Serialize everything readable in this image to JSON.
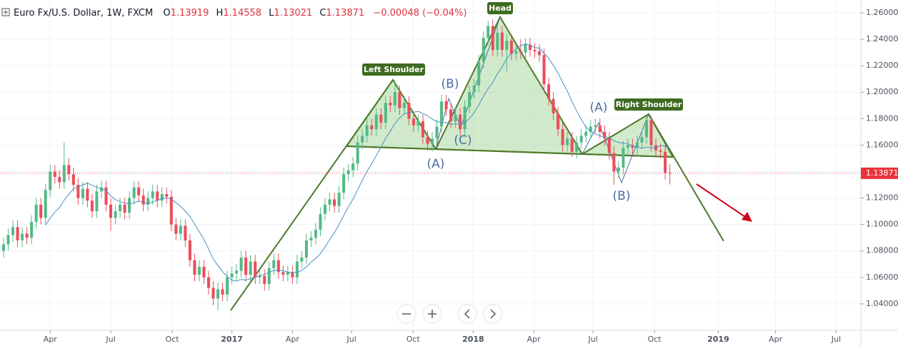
{
  "chart_data": {
    "type": "candlestick",
    "symbol": "Euro Fx/U.S. Dollar, 1W, FXCM",
    "ohlc_letters": [
      "O",
      "H",
      "L",
      "C"
    ],
    "change": "−0.00048 (−0.04%)",
    "colors": {
      "up": "#53b987",
      "down": "#eb4d5c",
      "ma": "#4a90c2",
      "pattern": "#4f7a28"
    },
    "ma_period": 10,
    "ylim": [
      1.02,
      1.2697
    ],
    "yticks": [
      {
        "value": 1.04,
        "label": "1.04000"
      },
      {
        "value": 1.06,
        "label": "1.06000"
      },
      {
        "value": 1.08,
        "label": "1.08000"
      },
      {
        "value": 1.1,
        "label": "1.10000"
      },
      {
        "value": 1.12,
        "label": "1.12000"
      },
      {
        "value": 1.14,
        "label": "1.14000"
      },
      {
        "value": 1.16,
        "label": "1.16000"
      },
      {
        "value": 1.18,
        "label": "1.18000"
      },
      {
        "value": 1.2,
        "label": "1.20000"
      },
      {
        "value": 1.22,
        "label": "1.22000"
      },
      {
        "value": 1.24,
        "label": "1.24000"
      },
      {
        "value": 1.26,
        "label": "1.26000"
      }
    ],
    "xlim": [
      -0.77,
      184
    ],
    "xticks": [
      {
        "value": 10,
        "label": "Apr"
      },
      {
        "value": 23,
        "label": "Jul"
      },
      {
        "value": 36.2,
        "label": "Oct"
      },
      {
        "value": 49,
        "label": "2017"
      },
      {
        "value": 62,
        "label": "Apr"
      },
      {
        "value": 74.7,
        "label": "Jul"
      },
      {
        "value": 87.9,
        "label": "Oct"
      },
      {
        "value": 100.8,
        "label": "2018"
      },
      {
        "value": 113.8,
        "label": "Apr"
      },
      {
        "value": 126.5,
        "label": "Jul"
      },
      {
        "value": 139.7,
        "label": "Oct"
      },
      {
        "value": 153.4,
        "label": "2019"
      },
      {
        "value": 165.7,
        "label": "Apr"
      },
      {
        "value": 178.7,
        "label": "Jul"
      }
    ],
    "year_ticks": [
      3,
      7,
      11
    ],
    "annotations": {
      "left_shoulder": "Left Shoulder",
      "head": "Head",
      "right_shoulder": "Right Shoulder",
      "waves": [
        "(A)",
        "(B)",
        "(C)",
        "(A)",
        "(B)"
      ]
    },
    "candles": [
      [
        1.08,
        1.09,
        1.075,
        1.085
      ],
      [
        1.085,
        1.097,
        1.08,
        1.092
      ],
      [
        1.092,
        1.103,
        1.087,
        1.098
      ],
      [
        1.098,
        1.103,
        1.083,
        1.088
      ],
      [
        1.088,
        1.098,
        1.083,
        1.093
      ],
      [
        1.093,
        1.098,
        1.085,
        1.09
      ],
      [
        1.09,
        1.107,
        1.085,
        1.102
      ],
      [
        1.102,
        1.12,
        1.097,
        1.115
      ],
      [
        1.115,
        1.12,
        1.1,
        1.105
      ],
      [
        1.105,
        1.131,
        1.1,
        1.126
      ],
      [
        1.126,
        1.145,
        1.121,
        1.14
      ],
      [
        1.14,
        1.145,
        1.131,
        1.136
      ],
      [
        1.136,
        1.141,
        1.127,
        1.132
      ],
      [
        1.132,
        1.162,
        1.127,
        1.145
      ],
      [
        1.145,
        1.15,
        1.133,
        1.138
      ],
      [
        1.138,
        1.143,
        1.125,
        1.13
      ],
      [
        1.13,
        1.135,
        1.115,
        1.12
      ],
      [
        1.12,
        1.132,
        1.115,
        1.127
      ],
      [
        1.127,
        1.132,
        1.113,
        1.118
      ],
      [
        1.118,
        1.123,
        1.105,
        1.11
      ],
      [
        1.11,
        1.13,
        1.105,
        1.125
      ],
      [
        1.125,
        1.133,
        1.12,
        1.128
      ],
      [
        1.128,
        1.133,
        1.11,
        1.115
      ],
      [
        1.115,
        1.12,
        1.095,
        1.105
      ],
      [
        1.105,
        1.115,
        1.1,
        1.11
      ],
      [
        1.11,
        1.12,
        1.105,
        1.115
      ],
      [
        1.115,
        1.12,
        1.104,
        1.109
      ],
      [
        1.109,
        1.125,
        1.104,
        1.12
      ],
      [
        1.12,
        1.133,
        1.115,
        1.128
      ],
      [
        1.128,
        1.133,
        1.117,
        1.122
      ],
      [
        1.122,
        1.127,
        1.11,
        1.115
      ],
      [
        1.115,
        1.125,
        1.11,
        1.12
      ],
      [
        1.12,
        1.13,
        1.115,
        1.125
      ],
      [
        1.125,
        1.13,
        1.113,
        1.118
      ],
      [
        1.118,
        1.128,
        1.113,
        1.123
      ],
      [
        1.123,
        1.128,
        1.116,
        1.121
      ],
      [
        1.121,
        1.126,
        1.095,
        1.1
      ],
      [
        1.1,
        1.105,
        1.088,
        1.093
      ],
      [
        1.093,
        1.104,
        1.088,
        1.099
      ],
      [
        1.099,
        1.104,
        1.083,
        1.088
      ],
      [
        1.088,
        1.093,
        1.068,
        1.073
      ],
      [
        1.073,
        1.078,
        1.057,
        1.062
      ],
      [
        1.062,
        1.073,
        1.057,
        1.068
      ],
      [
        1.068,
        1.073,
        1.055,
        1.06
      ],
      [
        1.06,
        1.065,
        1.047,
        1.052
      ],
      [
        1.052,
        1.057,
        1.039,
        1.044
      ],
      [
        1.044,
        1.056,
        1.035,
        1.051
      ],
      [
        1.051,
        1.056,
        1.042,
        1.047
      ],
      [
        1.047,
        1.065,
        1.042,
        1.06
      ],
      [
        1.06,
        1.068,
        1.055,
        1.063
      ],
      [
        1.063,
        1.07,
        1.058,
        1.065
      ],
      [
        1.065,
        1.08,
        1.06,
        1.075
      ],
      [
        1.075,
        1.08,
        1.057,
        1.062
      ],
      [
        1.062,
        1.077,
        1.057,
        1.072
      ],
      [
        1.072,
        1.077,
        1.055,
        1.06
      ],
      [
        1.06,
        1.066,
        1.055,
        1.061
      ],
      [
        1.061,
        1.066,
        1.05,
        1.055
      ],
      [
        1.055,
        1.072,
        1.05,
        1.067
      ],
      [
        1.067,
        1.078,
        1.062,
        1.073
      ],
      [
        1.073,
        1.078,
        1.059,
        1.064
      ],
      [
        1.064,
        1.069,
        1.057,
        1.062
      ],
      [
        1.062,
        1.069,
        1.057,
        1.064
      ],
      [
        1.064,
        1.069,
        1.055,
        1.06
      ],
      [
        1.06,
        1.077,
        1.055,
        1.072
      ],
      [
        1.072,
        1.08,
        1.067,
        1.075
      ],
      [
        1.075,
        1.093,
        1.07,
        1.088
      ],
      [
        1.088,
        1.095,
        1.083,
        1.09
      ],
      [
        1.09,
        1.101,
        1.085,
        1.096
      ],
      [
        1.096,
        1.113,
        1.091,
        1.108
      ],
      [
        1.108,
        1.12,
        1.103,
        1.115
      ],
      [
        1.115,
        1.124,
        1.11,
        1.119
      ],
      [
        1.119,
        1.124,
        1.109,
        1.114
      ],
      [
        1.114,
        1.129,
        1.109,
        1.124
      ],
      [
        1.124,
        1.143,
        1.119,
        1.138
      ],
      [
        1.138,
        1.146,
        1.133,
        1.141
      ],
      [
        1.141,
        1.151,
        1.136,
        1.146
      ],
      [
        1.146,
        1.167,
        1.141,
        1.162
      ],
      [
        1.162,
        1.172,
        1.157,
        1.167
      ],
      [
        1.167,
        1.18,
        1.162,
        1.175
      ],
      [
        1.175,
        1.18,
        1.167,
        1.172
      ],
      [
        1.172,
        1.188,
        1.167,
        1.183
      ],
      [
        1.183,
        1.188,
        1.172,
        1.177
      ],
      [
        1.177,
        1.197,
        1.172,
        1.192
      ],
      [
        1.192,
        1.197,
        1.185,
        1.19
      ],
      [
        1.19,
        1.209,
        1.185,
        1.2
      ],
      [
        1.2,
        1.205,
        1.183,
        1.188
      ],
      [
        1.188,
        1.197,
        1.183,
        1.192
      ],
      [
        1.192,
        1.197,
        1.175,
        1.18
      ],
      [
        1.18,
        1.185,
        1.17,
        1.175
      ],
      [
        1.175,
        1.183,
        1.17,
        1.178
      ],
      [
        1.178,
        1.183,
        1.161,
        1.166
      ],
      [
        1.166,
        1.171,
        1.156,
        1.161
      ],
      [
        1.161,
        1.17,
        1.155,
        1.165
      ],
      [
        1.165,
        1.179,
        1.16,
        1.174
      ],
      [
        1.174,
        1.198,
        1.169,
        1.193
      ],
      [
        1.193,
        1.198,
        1.182,
        1.187
      ],
      [
        1.187,
        1.192,
        1.173,
        1.178
      ],
      [
        1.178,
        1.188,
        1.173,
        1.183
      ],
      [
        1.183,
        1.188,
        1.167,
        1.172
      ],
      [
        1.172,
        1.194,
        1.167,
        1.189
      ],
      [
        1.189,
        1.205,
        1.184,
        1.2
      ],
      [
        1.2,
        1.21,
        1.195,
        1.205
      ],
      [
        1.205,
        1.228,
        1.2,
        1.223
      ],
      [
        1.223,
        1.246,
        1.218,
        1.241
      ],
      [
        1.241,
        1.254,
        1.236,
        1.25
      ],
      [
        1.25,
        1.255,
        1.227,
        1.232
      ],
      [
        1.232,
        1.25,
        1.227,
        1.245
      ],
      [
        1.245,
        1.25,
        1.227,
        1.232
      ],
      [
        1.232,
        1.244,
        1.216,
        1.239
      ],
      [
        1.239,
        1.244,
        1.224,
        1.229
      ],
      [
        1.229,
        1.236,
        1.224,
        1.231
      ],
      [
        1.231,
        1.24,
        1.225,
        1.23
      ],
      [
        1.23,
        1.241,
        1.225,
        1.236
      ],
      [
        1.236,
        1.241,
        1.227,
        1.232
      ],
      [
        1.232,
        1.237,
        1.226,
        1.231
      ],
      [
        1.231,
        1.236,
        1.223,
        1.228
      ],
      [
        1.228,
        1.233,
        1.201,
        1.206
      ],
      [
        1.206,
        1.211,
        1.19,
        1.195
      ],
      [
        1.195,
        1.2,
        1.179,
        1.184
      ],
      [
        1.184,
        1.189,
        1.167,
        1.172
      ],
      [
        1.172,
        1.177,
        1.155,
        1.16
      ],
      [
        1.16,
        1.17,
        1.155,
        1.165
      ],
      [
        1.165,
        1.17,
        1.151,
        1.155
      ],
      [
        1.155,
        1.167,
        1.15,
        1.162
      ],
      [
        1.162,
        1.172,
        1.157,
        1.167
      ],
      [
        1.167,
        1.175,
        1.162,
        1.17
      ],
      [
        1.17,
        1.179,
        1.165,
        1.174
      ],
      [
        1.174,
        1.18,
        1.169,
        1.175
      ],
      [
        1.175,
        1.18,
        1.165,
        1.17
      ],
      [
        1.17,
        1.175,
        1.16,
        1.165
      ],
      [
        1.165,
        1.17,
        1.149,
        1.154
      ],
      [
        1.154,
        1.159,
        1.13,
        1.14
      ],
      [
        1.14,
        1.148,
        1.135,
        1.143
      ],
      [
        1.143,
        1.163,
        1.138,
        1.158
      ],
      [
        1.158,
        1.165,
        1.153,
        1.16
      ],
      [
        1.16,
        1.165,
        1.153,
        1.158
      ],
      [
        1.158,
        1.167,
        1.153,
        1.162
      ],
      [
        1.162,
        1.171,
        1.157,
        1.166
      ],
      [
        1.166,
        1.182,
        1.161,
        1.179
      ],
      [
        1.179,
        1.182,
        1.155,
        1.16
      ],
      [
        1.16,
        1.165,
        1.151,
        1.156
      ],
      [
        1.156,
        1.161,
        1.15,
        1.155
      ],
      [
        1.155,
        1.16,
        1.134,
        1.1392
      ],
      [
        1.13919,
        1.14558,
        1.13021,
        1.13871
      ]
    ]
  }
}
